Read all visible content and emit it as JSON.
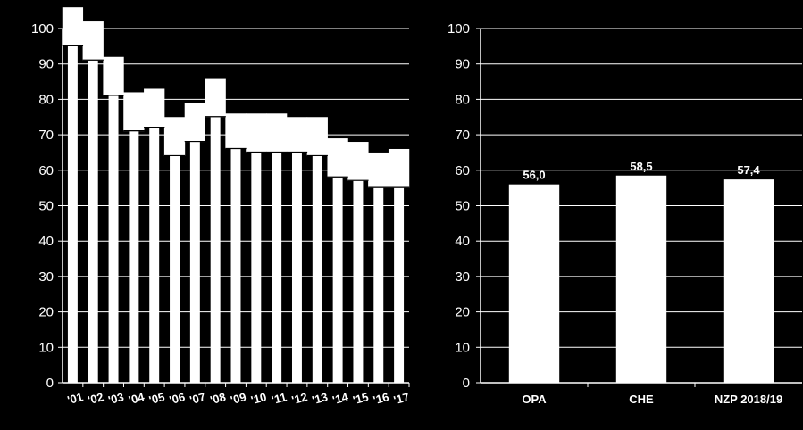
{
  "colors": {
    "background": "#000000",
    "bar": "#ffffff",
    "grid": "#ffffff",
    "text": "#ffffff"
  },
  "chart_data": [
    {
      "type": "bar",
      "title": "",
      "xlabel": "",
      "ylabel": "",
      "ylim": [
        0,
        100
      ],
      "yticks": [
        0,
        10,
        20,
        30,
        40,
        50,
        60,
        70,
        80,
        90,
        100
      ],
      "grid": "horizontal",
      "categories": [
        "'01",
        "'02",
        "'03",
        "'04",
        "'05",
        "'06",
        "'07",
        "'08",
        "'09",
        "'10",
        "'11",
        "'12",
        "'13",
        "'14",
        "'15",
        "'16",
        "'17"
      ],
      "values": [
        95,
        91,
        81,
        71,
        72,
        64,
        68,
        75,
        66,
        65,
        65,
        65,
        64,
        58,
        57,
        55,
        55
      ],
      "range_band": {
        "upper": [
          106,
          102,
          92,
          82,
          83,
          75,
          79,
          86,
          76,
          76,
          76,
          75,
          75,
          69,
          68,
          65,
          66
        ],
        "lower": [
          95,
          91,
          81,
          71,
          72,
          64,
          68,
          75,
          66,
          65,
          65,
          65,
          64,
          58,
          57,
          55,
          55
        ]
      }
    },
    {
      "type": "bar",
      "title": "",
      "xlabel": "",
      "ylabel": "",
      "ylim": [
        0,
        100
      ],
      "yticks": [
        0,
        10,
        20,
        30,
        40,
        50,
        60,
        70,
        80,
        90,
        100
      ],
      "grid": "horizontal",
      "categories": [
        "OPA",
        "CHE",
        "NZP 2018/19"
      ],
      "values": [
        56.0,
        58.5,
        57.4
      ],
      "value_labels": [
        "56,0",
        "58,5",
        "57,4"
      ]
    }
  ]
}
